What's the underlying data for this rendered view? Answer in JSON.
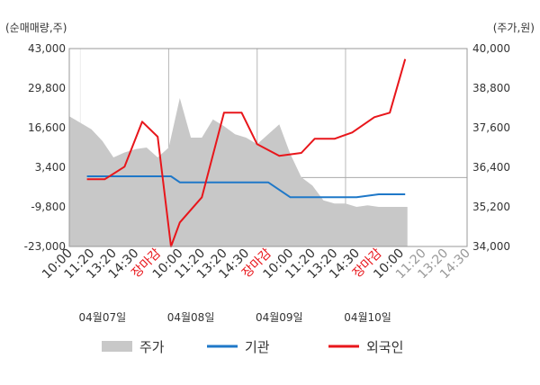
{
  "chart_data": {
    "type": "line",
    "left_axis_label": "(순매매량,주)",
    "right_axis_label": "(주가,원)",
    "left_ticks": [
      "43,000",
      "29,800",
      "16,600",
      "3,400",
      "-9,800",
      "-23,000"
    ],
    "right_ticks": [
      "40,000",
      "38,800",
      "37,600",
      "36,400",
      "35,200",
      "34,000"
    ],
    "ylim_left": [
      -23000,
      43000
    ],
    "ylim_right": [
      34000,
      40000
    ],
    "x_tick_labels": [
      {
        "text": "10:00",
        "color": "#333333"
      },
      {
        "text": "11:20",
        "color": "#333333"
      },
      {
        "text": "13:20",
        "color": "#333333"
      },
      {
        "text": "14:30",
        "color": "#333333"
      },
      {
        "text": "장마감",
        "color": "#e8161b"
      },
      {
        "text": "10:00",
        "color": "#333333"
      },
      {
        "text": "11:20",
        "color": "#333333"
      },
      {
        "text": "13:20",
        "color": "#333333"
      },
      {
        "text": "14:30",
        "color": "#333333"
      },
      {
        "text": "장마감",
        "color": "#e8161b"
      },
      {
        "text": "10:00",
        "color": "#333333"
      },
      {
        "text": "11:20",
        "color": "#333333"
      },
      {
        "text": "13:20",
        "color": "#333333"
      },
      {
        "text": "14:30",
        "color": "#333333"
      },
      {
        "text": "장마감",
        "color": "#e8161b"
      },
      {
        "text": "10:00",
        "color": "#333333"
      },
      {
        "text": "11:20",
        "color": "#999999"
      },
      {
        "text": "13:20",
        "color": "#999999"
      },
      {
        "text": "14:30",
        "color": "#999999"
      }
    ],
    "dates": [
      "04월07일",
      "04월08일",
      "04월09일",
      "04월10일"
    ],
    "series": [
      {
        "name": "주가",
        "type": "area",
        "color": "#c8c8c8",
        "axis": "right",
        "x": [
          0,
          0.5,
          1,
          1.5,
          2,
          2.5,
          3,
          3.5,
          4,
          4.5,
          5,
          5.5,
          6,
          6.5,
          7,
          7.5,
          8,
          8.5,
          9,
          9.5,
          10,
          10.5,
          11,
          11.5,
          12,
          12.5,
          13,
          13.5,
          14,
          14.5,
          15,
          15.3
        ],
        "values": [
          37.95,
          37.75,
          37.55,
          37.2,
          36.7,
          36.85,
          36.95,
          37.0,
          36.7,
          37.0,
          38.5,
          37.3,
          37.3,
          37.85,
          37.65,
          37.4,
          37.3,
          37.1,
          37.4,
          37.7,
          36.8,
          36.1,
          35.85,
          35.4,
          35.3,
          35.3,
          35.2,
          35.25,
          35.2,
          35.2,
          35.2,
          35.2
        ]
      },
      {
        "name": "기관",
        "type": "line",
        "color": "#1f78c8",
        "axis": "left",
        "x": [
          0.8,
          3,
          4,
          4.6,
          5,
          7,
          8,
          9,
          10,
          11,
          12,
          13,
          14,
          15.2
        ],
        "values": [
          400,
          400,
          400,
          400,
          -1600,
          -1600,
          -1600,
          -1600,
          -6600,
          -6600,
          -6600,
          -6600,
          -5600,
          -5600
        ]
      },
      {
        "name": "외국인",
        "type": "line",
        "color": "#e8161b",
        "axis": "left",
        "x": [
          0.8,
          1.6,
          2.5,
          3.3,
          4,
          4.6,
          5,
          6,
          7,
          7.8,
          8.5,
          9.5,
          10.5,
          11.1,
          12,
          12.8,
          13.8,
          14.5,
          15.2
        ],
        "values": [
          -600,
          -600,
          3600,
          18600,
          13600,
          -23000,
          -15000,
          -6600,
          21600,
          21600,
          11100,
          7200,
          8200,
          12900,
          12900,
          15000,
          20100,
          21600,
          39500
        ]
      }
    ]
  },
  "legend": [
    {
      "label": "주가",
      "color": "#c8c8c8"
    },
    {
      "label": "기관",
      "color": "#1f78c8"
    },
    {
      "label": "외국인",
      "color": "#e8161b"
    }
  ]
}
